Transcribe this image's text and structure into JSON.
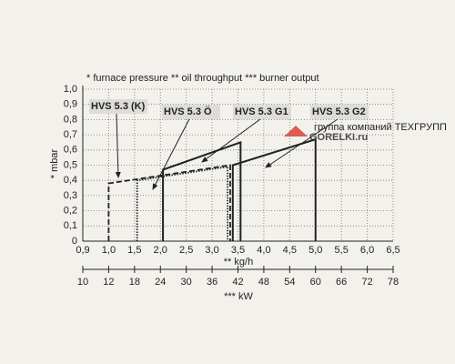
{
  "chart_data": {
    "type": "line",
    "title": "* furnace pressure  ** oil throughput  *** burner output",
    "y_label": "* mbar",
    "x_label": "** kg/h",
    "x2_label": "*** kW",
    "watermark": "GORELKI.ru",
    "watermark_sub": "группа компаний ТЕХГРУПП",
    "xlim": [
      0.9,
      6.5
    ],
    "xticks": [
      {
        "value": 0.9,
        "label": "0,9"
      },
      {
        "value": 1.0,
        "label": "1,0"
      },
      {
        "value": 1.5,
        "label": "1,5"
      },
      {
        "value": 2.0,
        "label": "2,0"
      },
      {
        "value": 2.5,
        "label": "2,5"
      },
      {
        "value": 3.0,
        "label": "3,0"
      },
      {
        "value": 3.5,
        "label": "3,5"
      },
      {
        "value": 4.0,
        "label": "4,0"
      },
      {
        "value": 4.5,
        "label": "4,5"
      },
      {
        "value": 5.0,
        "label": "5,0"
      },
      {
        "value": 5.5,
        "label": "5,5"
      },
      {
        "value": 6.0,
        "label": "6,0"
      },
      {
        "value": 6.5,
        "label": "6,5"
      }
    ],
    "ylim": [
      0,
      1.0
    ],
    "yticks": [
      0,
      {
        "value": 0.1,
        "label": "0,1"
      },
      {
        "value": 0.2,
        "label": "0,2"
      },
      {
        "value": 0.3,
        "label": "0,3"
      },
      {
        "value": 0.4,
        "label": "0,4"
      },
      {
        "value": 0.5,
        "label": "0,5"
      },
      {
        "value": 0.6,
        "label": "0,6"
      },
      {
        "value": 0.7,
        "label": "0,7"
      },
      {
        "value": 0.8,
        "label": "0,8"
      },
      {
        "value": 0.9,
        "label": "0,9"
      },
      {
        "value": 1.0,
        "label": "1,0"
      }
    ],
    "x2lim": [
      10,
      78
    ],
    "x2ticks": [
      10,
      12,
      18,
      24,
      30,
      36,
      42,
      48,
      54,
      60,
      66,
      72,
      78
    ],
    "grid": true,
    "series": [
      {
        "name": "HVS 5.3 (K)",
        "color": "#222222",
        "style": "dashed",
        "x": [
          1.0,
          1.0,
          3.35,
          3.35
        ],
        "values": [
          0,
          0.38,
          0.5,
          0
        ]
      },
      {
        "name": "HVS 5.3 Ö",
        "color": "#222222",
        "style": "dotted",
        "x": [
          1.55,
          1.55,
          3.3,
          3.3
        ],
        "values": [
          0,
          0.4,
          0.49,
          0
        ]
      },
      {
        "name": "HVS 5.3 G1",
        "color": "#222222",
        "style": "solid",
        "x": [
          2.05,
          2.05,
          3.55,
          3.55
        ],
        "values": [
          0,
          0.47,
          0.65,
          0
        ]
      },
      {
        "name": "HVS 5.3 G2",
        "color": "#222222",
        "style": "solid",
        "x": [
          3.4,
          3.4,
          5.0,
          5.0
        ],
        "values": [
          0,
          0.5,
          0.67,
          0
        ]
      }
    ]
  }
}
